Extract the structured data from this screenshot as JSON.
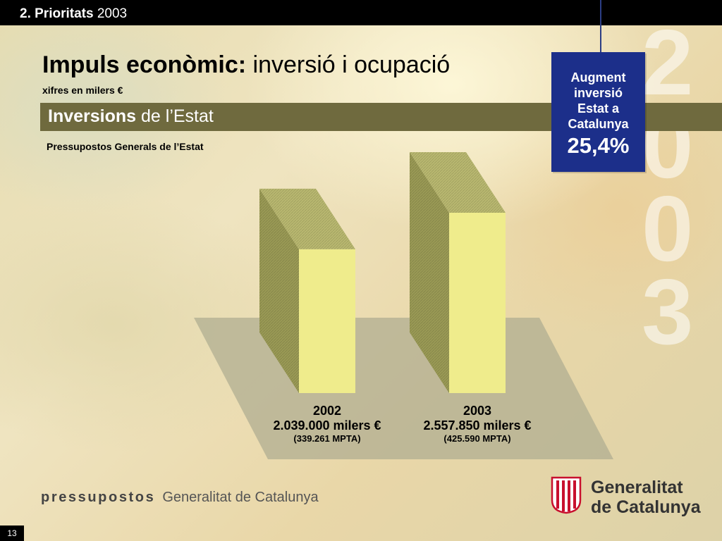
{
  "header": {
    "section_bold": "2. Prioritats",
    "section_year": "2003"
  },
  "watermark": [
    "2",
    "0",
    "0",
    "3"
  ],
  "title": {
    "bold": "Impuls econòmic:",
    "rest": " inversió i ocupació"
  },
  "subtitle": "xifres en milers €",
  "section": {
    "bold": "Inversions",
    "rest": " de l’Estat"
  },
  "chart_caption": "Pressupostos Generals de l’Estat",
  "callout": {
    "text": "Augment\ninversió\nEstat  a\nCatalunya",
    "value": "25,4%"
  },
  "chart_data": {
    "type": "bar",
    "title": "",
    "categories": [
      "2002",
      "2003"
    ],
    "values": [
      2039000,
      2557850
    ],
    "value_labels": [
      "2.039.000 milers €",
      "2.557.850 milers €"
    ],
    "sub_labels": [
      "(339.261 MPTA)",
      "(425.590 MPTA)"
    ],
    "unit": "milers €",
    "ylim": [
      0,
      2557850
    ],
    "grid": false,
    "legend": "none",
    "colors": {
      "front": "#efec8c",
      "side": "#9a9a55",
      "top": "#b9b870",
      "floor": "#b0ad92"
    }
  },
  "footer": {
    "brand": "pressupostos",
    "org": "Generalitat de Catalunya",
    "logo_text": "Generalitat\nde Catalunya"
  },
  "page_number": "13",
  "colors": {
    "topbar": "#000000",
    "section_bar": "#6f6a3e",
    "callout": "#1c2f8a"
  }
}
